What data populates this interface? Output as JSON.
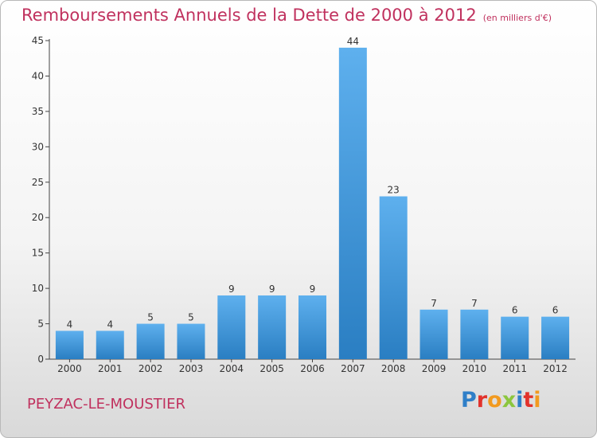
{
  "title": "Remboursements Annuels de la Dette de 2000 à 2012",
  "subtitle": "(en milliers d'€)",
  "commune": "PEYZAC-LE-MOUSTIER",
  "logo": {
    "letters": [
      {
        "char": "P",
        "color": "#2f7fc8"
      },
      {
        "char": "r",
        "color": "#e2322b"
      },
      {
        "char": "o",
        "color": "#f29a1f"
      },
      {
        "char": "x",
        "color": "#8cc63e"
      },
      {
        "char": "i",
        "color": "#2f7fc8"
      },
      {
        "char": "t",
        "color": "#e2322b"
      },
      {
        "char": "i",
        "color": "#f29a1f"
      }
    ]
  },
  "colors": {
    "bar_light": "#5eb0ee",
    "bar_dark": "#2a7ec2",
    "accent": "#c0315e"
  },
  "chart_data": {
    "type": "bar",
    "title": "Remboursements Annuels de la Dette de 2000 à 2012",
    "subtitle": "(en milliers d'€)",
    "categories": [
      "2000",
      "2001",
      "2002",
      "2003",
      "2004",
      "2005",
      "2006",
      "2007",
      "2008",
      "2009",
      "2010",
      "2011",
      "2012"
    ],
    "values": [
      4,
      4,
      5,
      5,
      9,
      9,
      9,
      44,
      23,
      7,
      7,
      6,
      6
    ],
    "xlabel": "",
    "ylabel": "",
    "ylim": [
      0,
      45
    ],
    "yticks": [
      0,
      5,
      10,
      15,
      20,
      25,
      30,
      35,
      40,
      45
    ],
    "grid": false,
    "data_labels": true
  }
}
